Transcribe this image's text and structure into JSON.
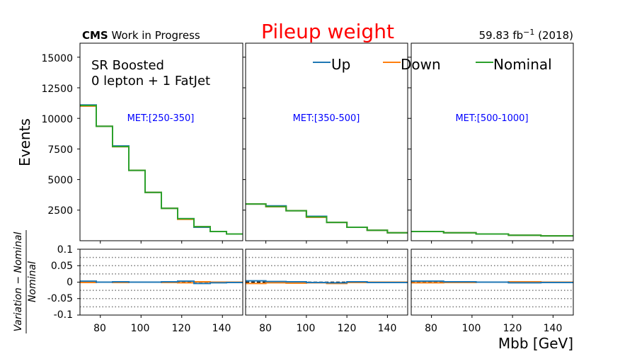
{
  "header": {
    "cms_bold": "CMS",
    "cms_rest": " Work in Progress",
    "title": "Pileup weight",
    "title_color": "#ff0000",
    "lumi_prefix": "59.83 fb",
    "lumi_exp": "−1",
    "lumi_suffix": " (2018)"
  },
  "region": {
    "line1": "SR Boosted",
    "line2": "0 lepton + 1 FatJet"
  },
  "legend": [
    {
      "name": "Up",
      "color": "#1f77b4"
    },
    {
      "name": "Down",
      "color": "#ff7f0e"
    },
    {
      "name": "Nominal",
      "color": "#2ca02c"
    }
  ],
  "axes": {
    "ylabel_top": "Events",
    "ylabel_bottom_num": "Variation − Nominal",
    "ylabel_bottom_den": "Nominal",
    "xlabel": "Mbb [GeV]",
    "x_ticks": [
      "80",
      "100",
      "120",
      "140"
    ],
    "y_ticks_top": [
      "2500",
      "5000",
      "7500",
      "10000",
      "12500",
      "15000"
    ],
    "y_ticks_bottom": [
      "0.1",
      "0.05",
      "0",
      "-0.05",
      "-0.1"
    ],
    "met_color": "#0000ff"
  },
  "chart_data": {
    "type": "line",
    "xlim": [
      70,
      150
    ],
    "ylim": [
      0,
      16200
    ],
    "ratio_ylim": [
      -0.1,
      0.1
    ],
    "bin_edges": [
      70,
      78,
      86,
      94,
      102,
      110,
      118,
      126,
      134,
      142,
      150
    ],
    "dotted_ratio_levels": [
      0.075,
      0.05,
      0.025,
      -0.025,
      -0.05,
      -0.075
    ],
    "panels": [
      {
        "met_label": "MET:[250-350]",
        "Nominal": [
          11050,
          9350,
          7700,
          5750,
          3950,
          2650,
          1800,
          1150,
          750,
          550
        ],
        "Up": [
          11100,
          9350,
          7750,
          5750,
          3950,
          2650,
          1800,
          1100,
          750,
          550
        ],
        "Down": [
          11000,
          9350,
          7680,
          5750,
          3950,
          2650,
          1750,
          1150,
          750,
          550
        ],
        "ratio_up": [
          0.003,
          0.0,
          0.001,
          0.0,
          0.0,
          0.001,
          0.003,
          -0.004,
          -0.002,
          -0.001
        ],
        "ratio_down": [
          -0.001,
          0.0,
          -0.001,
          0.0,
          0.0,
          -0.001,
          -0.002,
          0.001,
          0.0,
          0.0
        ]
      },
      {
        "met_label": "MET:[350-500]",
        "Nominal": [
          3000,
          2800,
          2450,
          1950,
          1500,
          1100,
          850,
          650
        ],
        "Up": [
          3000,
          2850,
          2450,
          2000,
          1500,
          1100,
          850,
          650
        ],
        "Down": [
          3000,
          2780,
          2450,
          1920,
          1500,
          1100,
          850,
          650
        ],
        "ratio_up": [
          0.004,
          0.002,
          0.001,
          -0.001,
          -0.002,
          0.001,
          -0.001,
          -0.001
        ],
        "ratio_down": [
          -0.004,
          -0.002,
          -0.003,
          -0.002,
          -0.004,
          -0.001,
          0.0,
          0.0
        ]
      },
      {
        "met_label": "MET:[500-1000]",
        "Nominal": [
          750,
          650,
          550,
          450,
          400
        ],
        "Up": [
          750,
          650,
          550,
          450,
          400
        ],
        "Down": [
          750,
          650,
          550,
          450,
          400
        ],
        "ratio_up": [
          0.003,
          0.001,
          0.0,
          -0.002,
          -0.001
        ],
        "ratio_down": [
          -0.002,
          -0.001,
          0.0,
          0.001,
          0.0
        ]
      }
    ],
    "panel_bin_edges": [
      [
        70,
        78,
        86,
        94,
        102,
        110,
        118,
        126,
        134,
        142,
        150
      ],
      [
        70,
        80,
        90,
        100,
        110,
        120,
        130,
        140,
        150
      ],
      [
        70,
        86,
        102,
        118,
        134,
        150
      ]
    ]
  }
}
